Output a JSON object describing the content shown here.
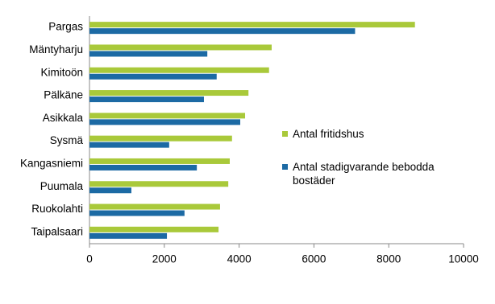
{
  "chart_data": {
    "type": "hbar",
    "categories": [
      "Pargas",
      "Mäntyharju",
      "Kimitoön",
      "Pälkäne",
      "Asikkala",
      "Sysmä",
      "Kangasniemi",
      "Puumala",
      "Ruokolahti",
      "Taipalsaari"
    ],
    "series": [
      {
        "name": "Antal fritidshus",
        "color": "#a9c93a",
        "values": [
          8700,
          4870,
          4800,
          4250,
          4160,
          3810,
          3750,
          3710,
          3490,
          3450
        ]
      },
      {
        "name": "Antal stadigvarande bebodda bostäder",
        "color": "#1c6aa4",
        "values": [
          7100,
          3150,
          3400,
          3060,
          4030,
          2130,
          2870,
          1120,
          2540,
          2070
        ]
      }
    ],
    "xlim": [
      0,
      10000
    ],
    "xticks": [
      0,
      2000,
      4000,
      6000,
      8000,
      10000
    ],
    "grid": false,
    "legend": "right"
  }
}
